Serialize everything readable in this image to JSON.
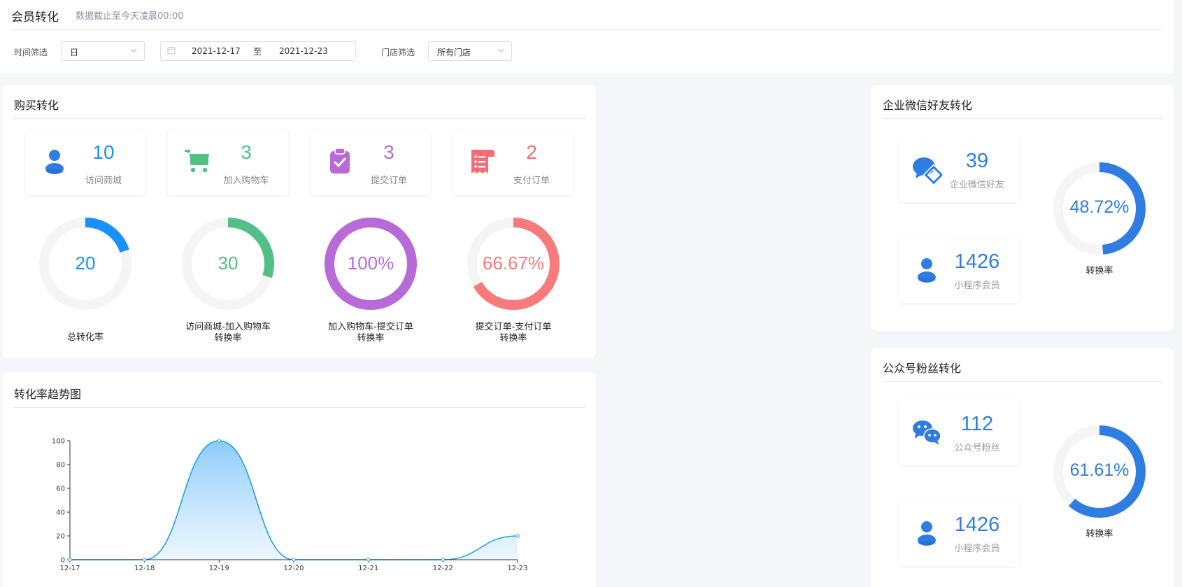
{
  "header": {
    "title": "会员转化",
    "subtitle": "数据截止至今天凌晨00:00",
    "time_filter_label": "时间筛选",
    "time_filter_value": "日",
    "date_start": "2021-12-17",
    "date_sep": "至",
    "date_end": "2021-12-23",
    "store_filter_label": "门店筛选",
    "store_filter_value": "所有门店"
  },
  "purchase": {
    "title": "购买转化",
    "stats": [
      {
        "value": "10",
        "label": "访问商城",
        "color": "#1890ff",
        "icon": "user-icon"
      },
      {
        "value": "3",
        "label": "加入购物车",
        "color": "#52bf87",
        "icon": "cart-icon"
      },
      {
        "value": "3",
        "label": "提交订单",
        "color": "#b86ad8",
        "icon": "clipboard-check-icon"
      },
      {
        "value": "2",
        "label": "支付订单",
        "color": "#f96b72",
        "icon": "receipt-icon"
      }
    ],
    "rates": [
      {
        "value": "20",
        "fraction": 0.2,
        "color": "#1890ff",
        "caption1": "总转化率",
        "caption2": ""
      },
      {
        "value": "30",
        "fraction": 0.3,
        "color": "#52bf87",
        "caption1": "访问商城-加入购物车",
        "caption2": "转换率"
      },
      {
        "value": "100%",
        "fraction": 1.0,
        "color": "#b86ad8",
        "caption1": "加入购物车-提交订单",
        "caption2": "转换率"
      },
      {
        "value": "66.67%",
        "fraction": 0.6667,
        "color": "#f97a7a",
        "caption1": "提交订单-支付订单",
        "caption2": "转换率"
      }
    ]
  },
  "wechat_work": {
    "title": "企业微信好友转化",
    "items": [
      {
        "value": "39",
        "label": "企业微信好友",
        "icon": "wechat-work-icon"
      },
      {
        "value": "1426",
        "label": "小程序会员",
        "icon": "user-icon"
      }
    ],
    "rate": {
      "value": "48.72%",
      "fraction": 0.4872,
      "label": "转换率",
      "color": "#2f7de1"
    }
  },
  "official_account": {
    "title": "公众号粉丝转化",
    "items": [
      {
        "value": "112",
        "label": "公众号粉丝",
        "icon": "wechat-icon"
      },
      {
        "value": "1426",
        "label": "小程序会员",
        "icon": "user-icon"
      }
    ],
    "rate": {
      "value": "61.61%",
      "fraction": 0.6161,
      "label": "转换率",
      "color": "#2f7de1"
    }
  },
  "trend": {
    "title": "转化率趋势图"
  },
  "chart_data": {
    "type": "area",
    "x": [
      "12-17",
      "12-18",
      "12-19",
      "12-20",
      "12-21",
      "12-22",
      "12-23"
    ],
    "series": [
      {
        "values": [
          0,
          0,
          100,
          0,
          0,
          0,
          20
        ]
      }
    ],
    "ylim": [
      0,
      100
    ],
    "yticks": [
      0,
      20,
      40,
      60,
      80,
      100
    ],
    "color": "#1e9fe8",
    "grid": false
  }
}
